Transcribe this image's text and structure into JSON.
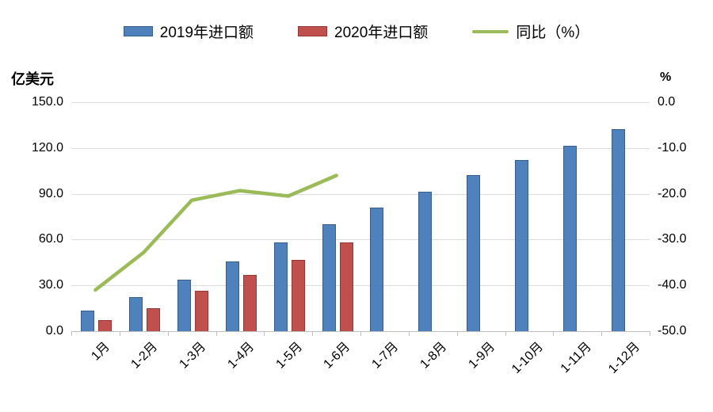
{
  "colors": {
    "bar_2019": "#4F81BD",
    "bar_2019_border": "#385D8A",
    "bar_2020": "#C0504D",
    "bar_2020_border": "#953735",
    "line_yoy": "#9BBB59",
    "gridline": "#DCDCDC",
    "axis_line": "#BFBFBF",
    "text": "#000000"
  },
  "legend": {
    "items": [
      {
        "label": "2019年进口额",
        "type": "bar",
        "color": "#4F81BD"
      },
      {
        "label": "2020年进口额",
        "type": "bar",
        "color": "#C0504D"
      },
      {
        "label": "同比（%）",
        "type": "line",
        "color": "#9BBB59"
      }
    ]
  },
  "left_axis": {
    "title": "亿美元",
    "ticks": [
      "150.0",
      "120.0",
      "90.0",
      "60.0",
      "30.0",
      "0.0"
    ]
  },
  "right_axis": {
    "title": "%",
    "ticks": [
      "0.0",
      "-10.0",
      "-20.0",
      "-30.0",
      "-40.0",
      "-50.0"
    ]
  },
  "chart_data": {
    "type": "bar",
    "categories": [
      "1月",
      "1-2月",
      "1-3月",
      "1-4月",
      "1-5月",
      "1-6月",
      "1-7月",
      "1-8月",
      "1-9月",
      "1-10月",
      "1-11月",
      "1-12月"
    ],
    "series": [
      {
        "name": "2019年进口额",
        "type": "bar",
        "axis": "left",
        "color": "#4F81BD",
        "values": [
          13.5,
          22.3,
          33.7,
          45.5,
          58.3,
          69.9,
          80.8,
          91.5,
          102.2,
          112.0,
          121.5,
          132.5
        ]
      },
      {
        "name": "2020年进口额",
        "type": "bar",
        "axis": "left",
        "color": "#C0504D",
        "values": [
          7.5,
          15.0,
          26.3,
          36.7,
          46.7,
          58.3,
          null,
          null,
          null,
          null,
          null,
          null
        ]
      },
      {
        "name": "同比（%）",
        "type": "line",
        "axis": "right",
        "color": "#9BBB59",
        "values": [
          -41.0,
          -32.8,
          -21.4,
          -19.3,
          -20.5,
          -16.0,
          null,
          null,
          null,
          null,
          null,
          null
        ]
      }
    ],
    "left_axis_label": "亿美元",
    "right_axis_label": "%",
    "left_ylim": [
      0,
      150
    ],
    "right_ylim": [
      -50,
      0
    ],
    "grid": true,
    "legend_position": "top"
  }
}
